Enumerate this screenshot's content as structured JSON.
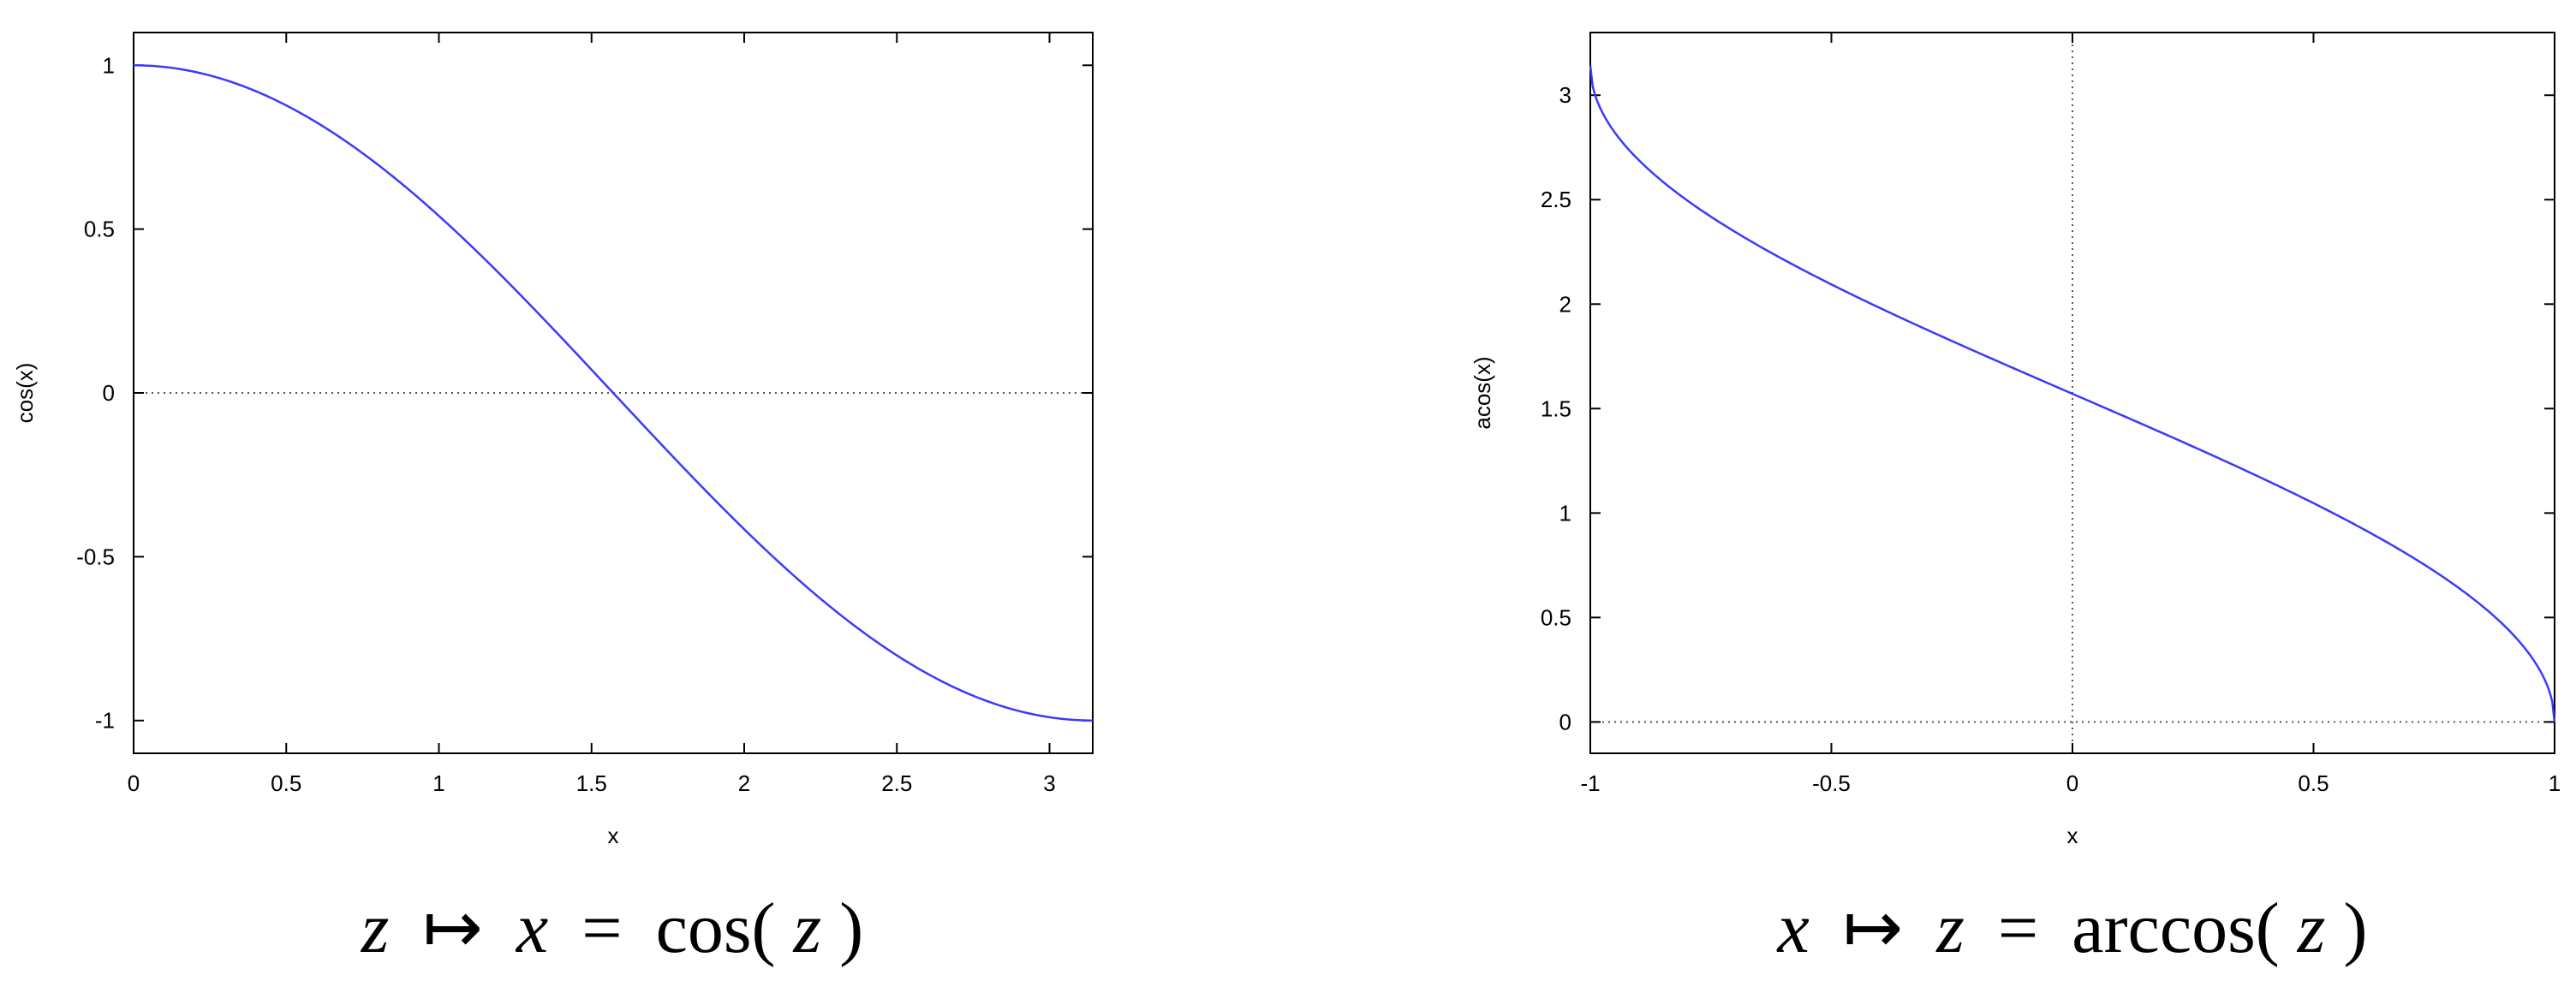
{
  "chart_data": [
    {
      "type": "line",
      "function": "cos",
      "series": [
        {
          "color": "#3a3aff",
          "points": [
            [
              0,
              1
            ],
            [
              0.25,
              0.969
            ],
            [
              0.5,
              0.878
            ],
            [
              0.75,
              0.732
            ],
            [
              1,
              0.54
            ],
            [
              1.25,
              0.315
            ],
            [
              1.5,
              0.071
            ],
            [
              1.5708,
              0
            ],
            [
              1.75,
              -0.178
            ],
            [
              2,
              -0.416
            ],
            [
              2.25,
              -0.628
            ],
            [
              2.5,
              -0.801
            ],
            [
              2.75,
              -0.924
            ],
            [
              3,
              -0.99
            ],
            [
              3.1416,
              -1
            ]
          ]
        }
      ],
      "xlabel": "x",
      "ylabel": "cos(x)",
      "xlim": [
        0,
        3.1416
      ],
      "ylim": [
        -1.1,
        1.1
      ],
      "xticks": [
        "0",
        "0.5",
        "1",
        "1.5",
        "2",
        "2.5",
        "3"
      ],
      "yticks": [
        "-1",
        "-0.5",
        "0",
        "0.5",
        "1"
      ],
      "zero_lines": [
        "y=0"
      ],
      "caption": {
        "a": "z",
        "arrow": "↦",
        "b": "x",
        "eq": "=",
        "fn": "cos(",
        "arg": "z",
        "close": ")"
      }
    },
    {
      "type": "line",
      "function": "acos",
      "series": [
        {
          "color": "#3a3aff",
          "points": [
            [
              -1,
              3.1416
            ],
            [
              -0.95,
              2.824
            ],
            [
              -0.9,
              2.691
            ],
            [
              -0.8,
              2.498
            ],
            [
              -0.6,
              2.214
            ],
            [
              -0.4,
              1.982
            ],
            [
              -0.2,
              1.772
            ],
            [
              0,
              1.5708
            ],
            [
              0.2,
              1.369
            ],
            [
              0.4,
              1.159
            ],
            [
              0.6,
              0.927
            ],
            [
              0.8,
              0.644
            ],
            [
              0.9,
              0.451
            ],
            [
              0.95,
              0.318
            ],
            [
              1,
              0
            ]
          ]
        }
      ],
      "xlabel": "x",
      "ylabel": "acos(x)",
      "xlim": [
        -1,
        1
      ],
      "ylim": [
        -0.15,
        3.3
      ],
      "xticks": [
        "-1",
        "-0.5",
        "0",
        "0.5",
        "1"
      ],
      "yticks": [
        "0",
        "0.5",
        "1",
        "1.5",
        "2",
        "2.5",
        "3"
      ],
      "zero_lines": [
        "y=0",
        "x=0"
      ],
      "caption": {
        "a": "x",
        "arrow": "↦",
        "b": "z",
        "eq": "=",
        "fn": "arccos(",
        "arg": "z",
        "close": ")"
      }
    }
  ]
}
